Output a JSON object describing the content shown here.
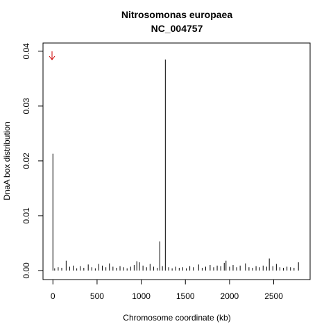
{
  "chart_data": {
    "type": "spike",
    "title": "Nitrosomonas europaea",
    "subtitle": "NC_004757",
    "x_label": "Chromosome coordinate (kb)",
    "y_label": "DnaA box distribution",
    "color": "#000000",
    "xlim": [
      -112,
      2912
    ],
    "ylim": [
      -0.00165,
      0.0415
    ],
    "xticks": [
      0,
      500,
      1000,
      1500,
      2000,
      2500
    ],
    "yticks": [
      {
        "value": 0,
        "label": "0.00"
      },
      0.01,
      0.02,
      0.03,
      0.04
    ],
    "x": [
      0,
      20,
      60,
      100,
      150,
      190,
      230,
      270,
      310,
      350,
      400,
      440,
      480,
      520,
      560,
      600,
      640,
      680,
      720,
      760,
      800,
      840,
      880,
      920,
      950,
      980,
      1020,
      1060,
      1100,
      1140,
      1180,
      1210,
      1240,
      1273,
      1310,
      1350,
      1390,
      1430,
      1470,
      1510,
      1550,
      1590,
      1650,
      1690,
      1730,
      1780,
      1820,
      1860,
      1900,
      1940,
      1960,
      2000,
      2040,
      2080,
      2120,
      2180,
      2220,
      2260,
      2300,
      2340,
      2380,
      2420,
      2450,
      2490,
      2530,
      2570,
      2610,
      2650,
      2690,
      2730,
      2780
    ],
    "values": [
      0.0213,
      0.0004,
      0.0006,
      0.0005,
      0.0018,
      0.0007,
      0.0009,
      0.0004,
      0.0008,
      0.0005,
      0.0011,
      0.0006,
      0.0004,
      0.0012,
      0.0009,
      0.0006,
      0.0013,
      0.0007,
      0.0005,
      0.0008,
      0.0006,
      0.0004,
      0.0007,
      0.001,
      0.0017,
      0.0015,
      0.0009,
      0.0006,
      0.0012,
      0.0007,
      0.0005,
      0.0053,
      0.0008,
      0.0385,
      0.0006,
      0.0004,
      0.0007,
      0.0005,
      0.0006,
      0.0004,
      0.0008,
      0.0006,
      0.0011,
      0.0005,
      0.0007,
      0.001,
      0.0006,
      0.0009,
      0.0008,
      0.0014,
      0.0018,
      0.0007,
      0.001,
      0.0006,
      0.0009,
      0.0013,
      0.0006,
      0.0005,
      0.0008,
      0.0006,
      0.0009,
      0.0007,
      0.0022,
      0.0008,
      0.0012,
      0.0006,
      0.0005,
      0.0007,
      0.0006,
      0.0005,
      0.0015
    ]
  }
}
